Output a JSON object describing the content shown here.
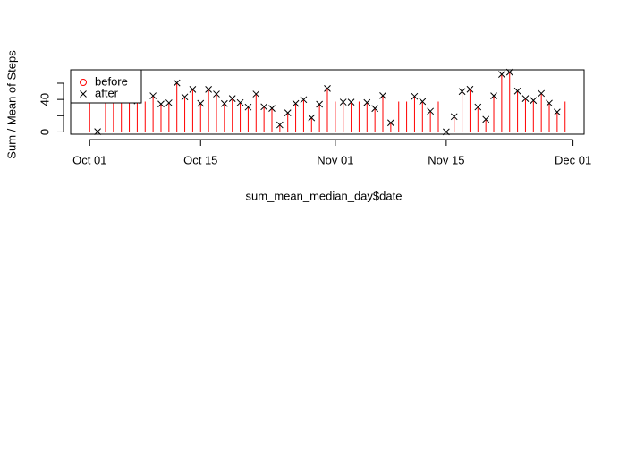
{
  "chart_data": {
    "type": "h-and-points",
    "x_label": "sum_mean_median_day$date",
    "y_label": "Sum / Mean of Steps",
    "x": [
      "10-01",
      "10-02",
      "10-03",
      "10-04",
      "10-05",
      "10-06",
      "10-07",
      "10-08",
      "10-09",
      "10-10",
      "10-11",
      "10-12",
      "10-13",
      "10-14",
      "10-15",
      "10-16",
      "10-17",
      "10-18",
      "10-19",
      "10-20",
      "10-21",
      "10-22",
      "10-23",
      "10-24",
      "10-25",
      "10-26",
      "10-27",
      "10-28",
      "10-29",
      "10-30",
      "10-31",
      "11-01",
      "11-02",
      "11-03",
      "11-04",
      "11-05",
      "11-06",
      "11-07",
      "11-08",
      "11-09",
      "11-10",
      "11-11",
      "11-12",
      "11-13",
      "11-14",
      "11-15",
      "11-16",
      "11-17",
      "11-18",
      "11-19",
      "11-20",
      "11-21",
      "11-22",
      "11-23",
      "11-24",
      "11-25",
      "11-26",
      "11-27",
      "11-28",
      "11-29",
      "11-30"
    ],
    "series": [
      {
        "name": "before",
        "color": "#ff0000",
        "style": "h",
        "values": [
          37.4,
          0.4,
          39.4,
          42.1,
          46.2,
          53.5,
          38.2,
          37.4,
          44.5,
          34.4,
          35.8,
          60.4,
          43.1,
          52.4,
          35.2,
          52.4,
          46.7,
          34.9,
          41.1,
          36.1,
          30.6,
          46.7,
          31.0,
          29.0,
          8.7,
          23.5,
          35.1,
          39.8,
          17.4,
          34.1,
          53.5,
          37.4,
          36.8,
          36.7,
          37.4,
          36.2,
          28.9,
          44.7,
          11.2,
          37.4,
          37.4,
          43.8,
          37.4,
          25.5,
          37.4,
          0.1,
          18.9,
          49.8,
          52.5,
          30.7,
          15.5,
          44.4,
          70.9,
          73.6,
          50.3,
          41.1,
          38.8,
          47.4,
          35.4,
          24.5,
          37.4
        ]
      },
      {
        "name": "after",
        "color": "#000000",
        "style": "x",
        "values": [
          null,
          0.4,
          39.4,
          42.1,
          46.2,
          53.5,
          38.2,
          null,
          44.5,
          34.4,
          35.8,
          60.4,
          43.1,
          52.4,
          35.2,
          52.4,
          46.7,
          34.9,
          41.1,
          36.1,
          30.6,
          46.7,
          31.0,
          29.0,
          8.7,
          23.5,
          35.1,
          39.8,
          17.4,
          34.1,
          53.5,
          null,
          36.8,
          36.7,
          null,
          36.2,
          28.9,
          44.7,
          11.2,
          null,
          null,
          43.8,
          37.4,
          25.5,
          null,
          0.1,
          18.9,
          49.8,
          52.5,
          30.7,
          15.5,
          44.4,
          70.9,
          73.6,
          50.3,
          41.1,
          38.8,
          47.4,
          35.4,
          24.5,
          null
        ]
      }
    ],
    "xlim": [
      "09-28.6",
      "12-02.4"
    ],
    "xticks": [
      {
        "value": "10-01",
        "label": "Oct 01"
      },
      {
        "value": "10-15",
        "label": "Oct 15"
      },
      {
        "value": "11-01",
        "label": "Nov 01"
      },
      {
        "value": "11-15",
        "label": "Nov 15"
      },
      {
        "value": "12-01",
        "label": "Dec 01"
      }
    ],
    "ylim": [
      -2.8,
      76.5
    ],
    "yticks": [
      0,
      {
        "value": 20,
        "label": null
      },
      40,
      {
        "value": 60,
        "label": null
      }
    ],
    "legend": "topleft"
  }
}
